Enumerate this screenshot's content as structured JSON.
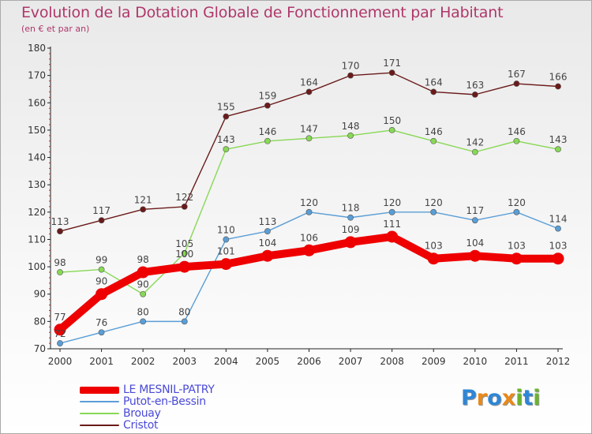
{
  "header": {
    "title": "Evolution de la Dotation Globale de Fonctionnement par Habitant",
    "subtitle": "(en € et par an)"
  },
  "logo": {
    "text": "Proxiti",
    "letters": [
      {
        "ch": "P",
        "color": "#2e86d6"
      },
      {
        "ch": "r",
        "color": "#e8891a"
      },
      {
        "ch": "o",
        "color": "#2e86d6"
      },
      {
        "ch": "x",
        "color": "#e8891a"
      },
      {
        "ch": "i",
        "color": "#6ab42c"
      },
      {
        "ch": "t",
        "color": "#2e86d6"
      },
      {
        "ch": "i",
        "color": "#6ab42c"
      }
    ]
  },
  "chart_data": {
    "type": "line",
    "x": [
      2000,
      2001,
      2002,
      2003,
      2004,
      2005,
      2006,
      2007,
      2008,
      2009,
      2010,
      2011,
      2012
    ],
    "ylim": [
      70,
      180
    ],
    "yticks": [
      70,
      80,
      90,
      100,
      110,
      120,
      130,
      140,
      150,
      160,
      170,
      180
    ],
    "grid": false,
    "legend_position": "bottom-left",
    "series": [
      {
        "name": "Cristot",
        "color": "#6b1a1a",
        "emphasis": false,
        "values": [
          113,
          117,
          121,
          122,
          155,
          159,
          164,
          170,
          171,
          164,
          163,
          167,
          166
        ]
      },
      {
        "name": "Brouay",
        "color": "#88d855",
        "emphasis": false,
        "values": [
          98,
          99,
          90,
          105,
          143,
          146,
          147,
          148,
          150,
          146,
          142,
          146,
          143
        ]
      },
      {
        "name": "Putot-en-Bessin",
        "color": "#5a9ed6",
        "emphasis": false,
        "values": [
          72,
          76,
          80,
          80,
          110,
          113,
          120,
          118,
          120,
          120,
          117,
          120,
          114
        ]
      },
      {
        "name": "LE MESNIL-PATRY",
        "color": "#ee0000",
        "emphasis": true,
        "values": [
          77,
          90,
          98,
          100,
          101,
          104,
          106,
          109,
          111,
          103,
          104,
          103,
          103
        ]
      }
    ],
    "legend_order": [
      "LE MESNIL-PATRY",
      "Putot-en-Bessin",
      "Brouay",
      "Cristot"
    ]
  }
}
